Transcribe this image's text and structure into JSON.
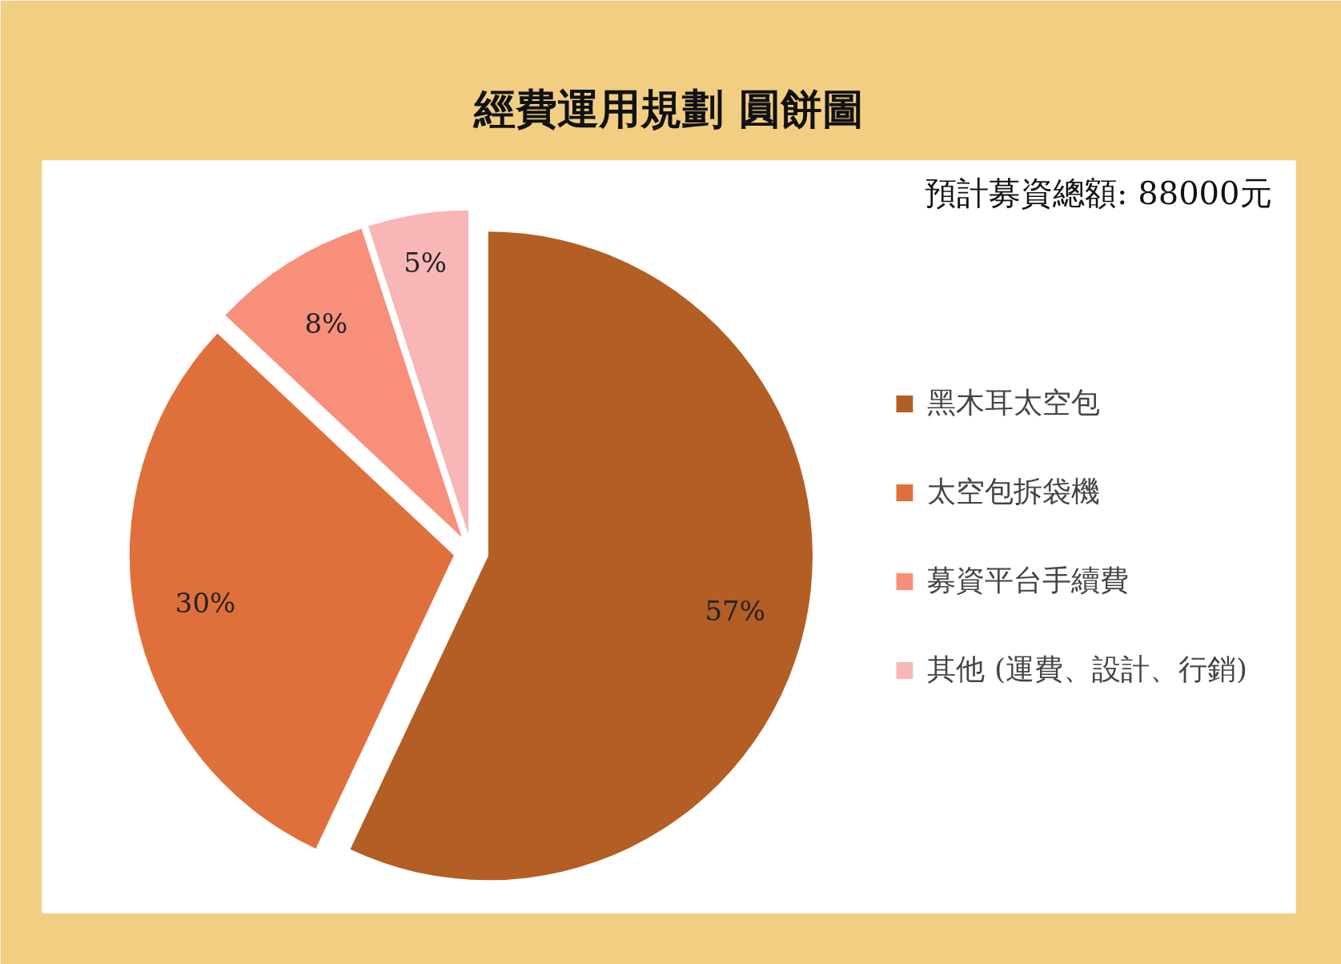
{
  "chart_data": {
    "type": "pie",
    "title": "經費運用規劃 圓餅圖",
    "categories": [
      "黑木耳太空包",
      "太空包拆袋機",
      "募資平台手續費",
      "其他 (運費、設計、行銷)"
    ],
    "values": [
      57,
      30,
      8,
      5
    ],
    "colors": [
      "#b35e24",
      "#e0703b",
      "#f78f7b",
      "#f8b6b6"
    ],
    "value_labels": [
      "57%",
      "30%",
      "8%",
      "5%"
    ],
    "legend": "right",
    "annotations": [
      "預計募資總額: 88000元"
    ]
  }
}
